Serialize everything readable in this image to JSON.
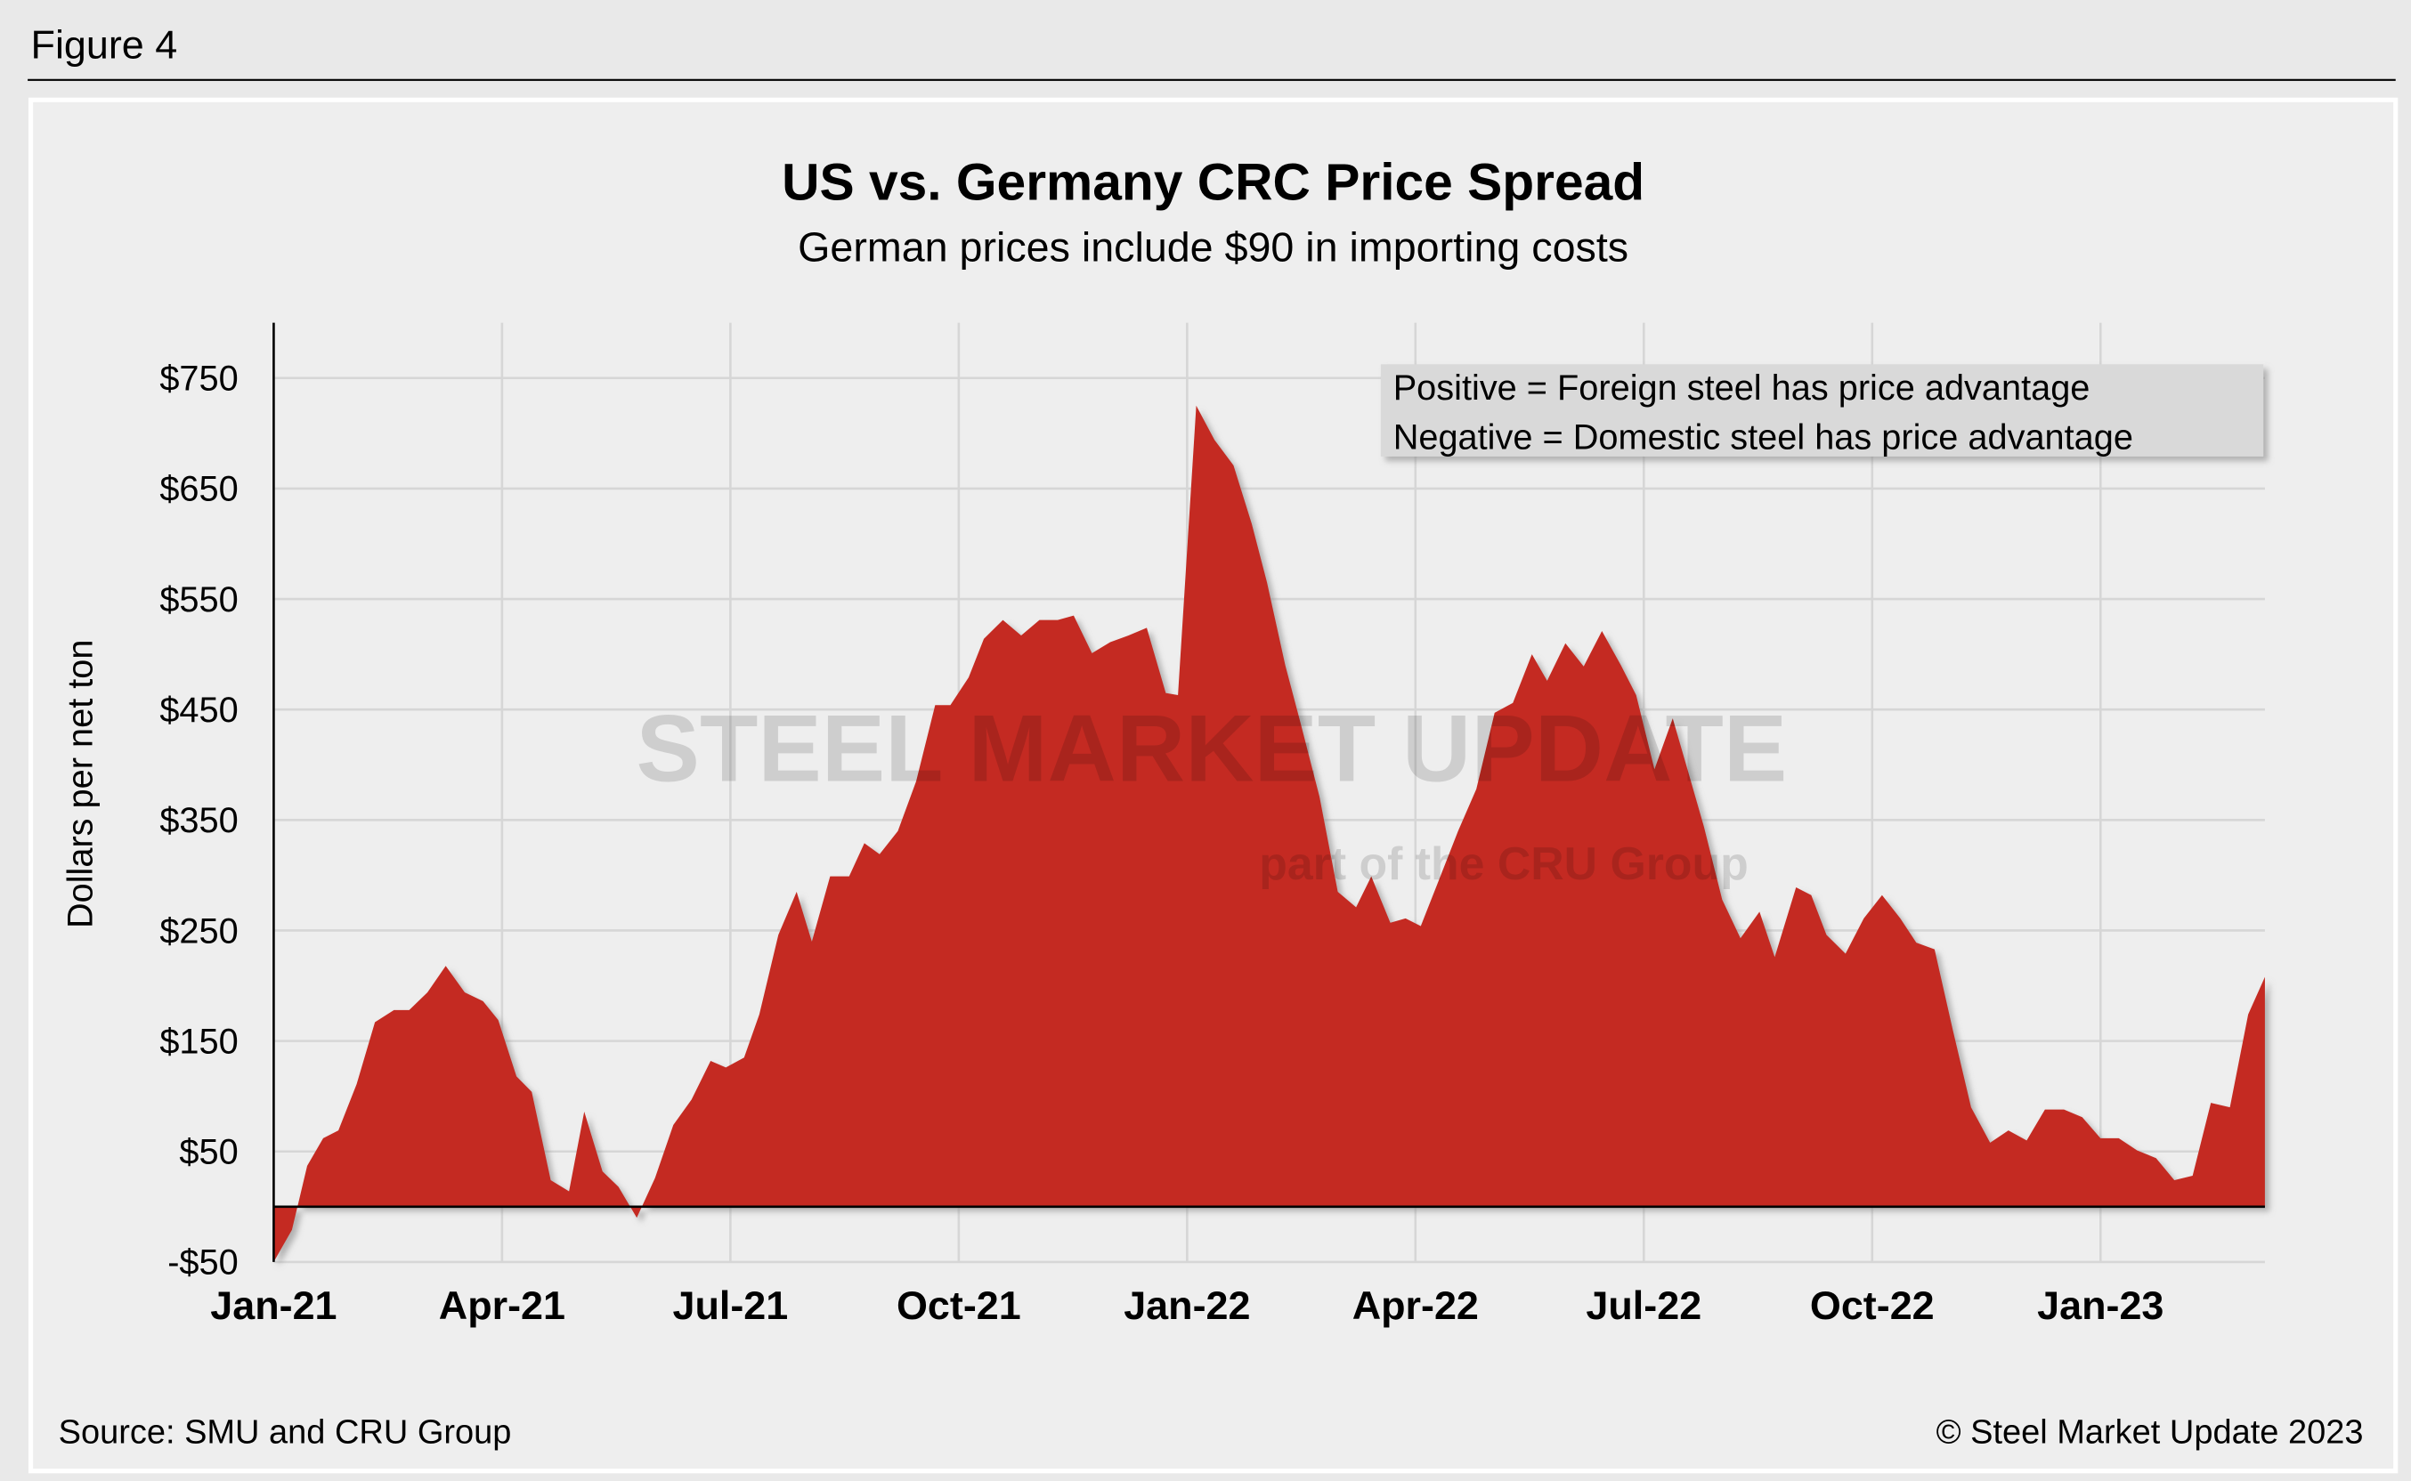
{
  "chart_data": {
    "type": "area",
    "figure_label": "Figure 4",
    "title": "US vs. Germany CRC Price Spread",
    "subtitle": "German prices include $90 in importing costs",
    "y_label": "Dollars per net ton",
    "annotations": [
      "Positive = Foreign steel has price advantage",
      "Negative = Domestic steel has price advantage"
    ],
    "watermark": [
      "STEEL MARKET UPDATE",
      "part of the CRU Group"
    ],
    "source": "Source: SMU and CRU Group",
    "copyright": "© Steel Market Update 2023",
    "color": "#c42b20",
    "grid": true,
    "xlim": [
      0,
      26.16
    ],
    "xticks": [
      {
        "value": 0,
        "label": "Jan-21"
      },
      {
        "value": 3,
        "label": "Apr-21"
      },
      {
        "value": 6,
        "label": "Jul-21"
      },
      {
        "value": 9,
        "label": "Oct-21"
      },
      {
        "value": 12,
        "label": "Jan-22"
      },
      {
        "value": 15,
        "label": "Apr-22"
      },
      {
        "value": 18,
        "label": "Jul-22"
      },
      {
        "value": 21,
        "label": "Oct-22"
      },
      {
        "value": 24,
        "label": "Jan-23"
      }
    ],
    "ylim": [
      -50,
      800
    ],
    "yticks": [
      {
        "value": -50,
        "label": "-$50"
      },
      {
        "value": 50,
        "label": "$50"
      },
      {
        "value": 150,
        "label": "$150"
      },
      {
        "value": 250,
        "label": "$250"
      },
      {
        "value": 350,
        "label": "$350"
      },
      {
        "value": 450,
        "label": "$450"
      },
      {
        "value": 550,
        "label": "$550"
      },
      {
        "value": 650,
        "label": "$650"
      },
      {
        "value": 750,
        "label": "$750"
      }
    ],
    "x": [
      0,
      0.24,
      0.44,
      0.65,
      0.85,
      1.09,
      1.33,
      1.58,
      1.78,
      2.02,
      2.26,
      2.51,
      2.75,
      2.95,
      3.19,
      3.39,
      3.64,
      3.88,
      4.08,
      4.32,
      4.53,
      4.77,
      5.01,
      5.25,
      5.49,
      5.74,
      5.94,
      6.18,
      6.38,
      6.63,
      6.87,
      7.07,
      7.31,
      7.56,
      7.76,
      7.96,
      8.2,
      8.44,
      8.69,
      8.89,
      9.13,
      9.33,
      9.58,
      9.82,
      10.06,
      10.3,
      10.51,
      10.75,
      10.99,
      11.23,
      11.47,
      11.72,
      11.88,
      12.12,
      12.36,
      12.61,
      12.85,
      13.05,
      13.29,
      13.49,
      13.74,
      13.98,
      14.22,
      14.42,
      14.67,
      14.87,
      15.07,
      15.31,
      15.56,
      15.8,
      16.04,
      16.28,
      16.53,
      16.73,
      16.97,
      17.21,
      17.45,
      17.7,
      17.9,
      18.14,
      18.38,
      18.59,
      18.79,
      19.03,
      19.27,
      19.52,
      19.72,
      20.0,
      20.2,
      20.4,
      20.65,
      20.89,
      21.13,
      21.37,
      21.58,
      21.82,
      22.06,
      22.3,
      22.55,
      22.79,
      23.03,
      23.27,
      23.52,
      23.76,
      24.0,
      24.24,
      24.48,
      24.73,
      24.97,
      25.21,
      25.45,
      25.7,
      25.94,
      26.16
    ],
    "values": [
      -50,
      -21,
      37,
      62,
      69,
      111,
      167,
      178,
      178,
      194,
      218,
      194,
      186,
      169,
      118,
      104,
      24,
      14,
      86,
      32,
      18,
      -10,
      26,
      74,
      97,
      132,
      126,
      135,
      174,
      246,
      285,
      240,
      299,
      299,
      329,
      319,
      340,
      385,
      454,
      454,
      479,
      514,
      531,
      517,
      531,
      531,
      535,
      501,
      511,
      517,
      524,
      465,
      463,
      725,
      694,
      671,
      618,
      565,
      490,
      438,
      371,
      285,
      271,
      299,
      257,
      261,
      254,
      296,
      340,
      378,
      447,
      456,
      500,
      476,
      510,
      489,
      521,
      490,
      463,
      396,
      442,
      392,
      344,
      278,
      243,
      267,
      226,
      289,
      282,
      246,
      229,
      261,
      282,
      261,
      239,
      233,
      160,
      90,
      58,
      69,
      60,
      88,
      88,
      81,
      62,
      62,
      51,
      44,
      24,
      28,
      94,
      90,
      174,
      208
    ]
  }
}
